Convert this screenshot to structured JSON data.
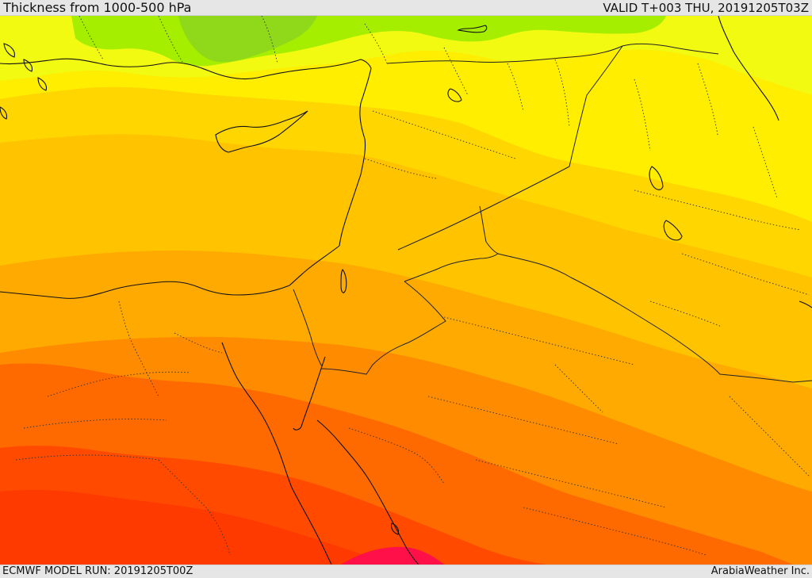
{
  "header": {
    "title": "Thickness from 1000-500 hPa",
    "valid_time": "VALID T+003 THU, 20191205T03Z"
  },
  "footer": {
    "model_run": "ECMWF MODEL RUN: 20191205T00Z",
    "credit": "ArabiaWeather Inc."
  },
  "map": {
    "colors": {
      "yellow_green": "#a6ee00",
      "green": "#8fd81a",
      "light_yellow": "#f2fa12",
      "yellow": "#ffee00",
      "gold": "#ffd600",
      "amber": "#ffc300",
      "orange_light": "#ffaa00",
      "orange": "#ff8c00",
      "orange_dark": "#ff6a00",
      "red_orange": "#ff4a00",
      "red": "#ff3500",
      "magenta": "#ff1048",
      "coastline": "#111111",
      "border": "#222222"
    }
  }
}
